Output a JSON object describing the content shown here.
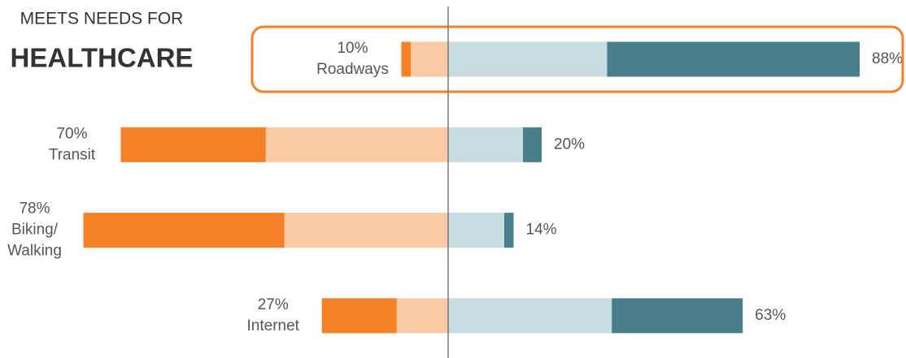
{
  "chart_data": {
    "type": "diverging-bar",
    "title": "MEETS NEEDS FOR",
    "subtitle": "HEALTHCARE",
    "categories": [
      [
        "Roadways"
      ],
      [
        "Transit"
      ],
      [
        "Biking/",
        "Walking"
      ],
      [
        "Internet"
      ]
    ],
    "series": [
      {
        "color": "#f9caa4",
        "side": "left",
        "values": [
          8,
          39,
          35,
          11
        ]
      },
      {
        "color": "#f58025",
        "side": "left",
        "values": [
          2,
          31,
          43,
          16
        ]
      },
      {
        "color": "#c8dde2",
        "side": "right",
        "values": [
          34,
          16,
          12,
          35
        ]
      },
      {
        "color": "#487f8a",
        "side": "right",
        "values": [
          54,
          4,
          2,
          28
        ]
      }
    ],
    "left_totals": {
      "values": [
        10,
        70,
        78,
        27
      ],
      "value_labels": [
        "10%",
        "70%",
        "78%",
        "27%"
      ]
    },
    "right_totals": {
      "values": [
        88,
        20,
        14,
        63
      ],
      "value_labels": [
        "88%",
        "20%",
        "14%",
        "63%"
      ]
    },
    "highlight": 0
  }
}
